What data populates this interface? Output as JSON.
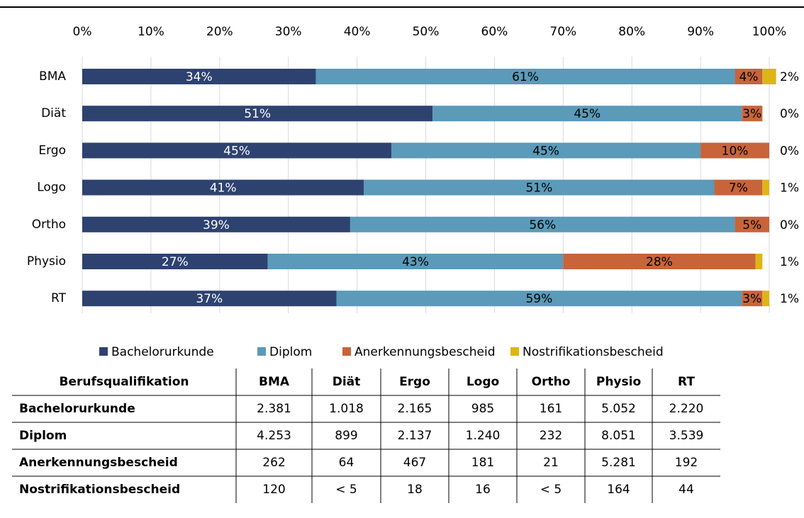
{
  "chart_data": {
    "type": "stacked_bar_horizontal",
    "categories": [
      "BMA",
      "Diät",
      "Ergo",
      "Logo",
      "Ortho",
      "Physio",
      "RT"
    ],
    "series": [
      {
        "name": "Bachelorurkunde",
        "color": "#2e4270",
        "values": [
          34,
          51,
          45,
          41,
          39,
          27,
          37
        ],
        "value_labels": [
          "34%",
          "51%",
          "45%",
          "41%",
          "39%",
          "27%",
          "37%"
        ]
      },
      {
        "name": "Diplom",
        "color": "#5b9ab9",
        "values": [
          61,
          45,
          45,
          51,
          56,
          43,
          59
        ],
        "value_labels": [
          "61%",
          "45%",
          "45%",
          "51%",
          "56%",
          "43%",
          "59%"
        ]
      },
      {
        "name": "Anerkennungsbescheid",
        "color": "#c8643a",
        "values": [
          4,
          3,
          10,
          7,
          5,
          28,
          3
        ],
        "value_labels": [
          "4%",
          "3%",
          "10%",
          "7%",
          "5%",
          "28%",
          "3%"
        ]
      },
      {
        "name": "Nostrifikationsbescheid",
        "color": "#dfb418",
        "values": [
          2,
          0,
          0,
          1,
          0,
          1,
          1
        ],
        "value_labels": [
          "2%",
          "0%",
          "0%",
          "1%",
          "0%",
          "1%",
          "1%"
        ]
      }
    ],
    "xlim": [
      0,
      100
    ],
    "xticks": [
      {
        "value": 0,
        "label": "0%"
      },
      {
        "value": 10,
        "label": "10%"
      },
      {
        "value": 20,
        "label": "20%"
      },
      {
        "value": 30,
        "label": "30%"
      },
      {
        "value": 40,
        "label": "40%"
      },
      {
        "value": 50,
        "label": "50%"
      },
      {
        "value": 60,
        "label": "60%"
      },
      {
        "value": 70,
        "label": "70%"
      },
      {
        "value": 80,
        "label": "80%"
      },
      {
        "value": 90,
        "label": "90%"
      },
      {
        "value": 100,
        "label": "100%"
      }
    ],
    "grid": true,
    "legend": "bottom"
  },
  "table": {
    "header": [
      "Berufsqualifikation",
      "BMA",
      "Diät",
      "Ergo",
      "Logo",
      "Ortho",
      "Physio",
      "RT"
    ],
    "rows": [
      [
        "Bachelorurkunde",
        "2.381",
        "1.018",
        "2.165",
        "985",
        "161",
        "5.052",
        "2.220"
      ],
      [
        "Diplom",
        "4.253",
        "899",
        "2.137",
        "1.240",
        "232",
        "8.051",
        "3.539"
      ],
      [
        "Anerkennungsbescheid",
        "262",
        "64",
        "467",
        "181",
        "21",
        "5.281",
        "192"
      ],
      [
        "Nostrifikationsbescheid",
        "120",
        "< 5",
        "18",
        "16",
        "< 5",
        "164",
        "44"
      ]
    ]
  }
}
